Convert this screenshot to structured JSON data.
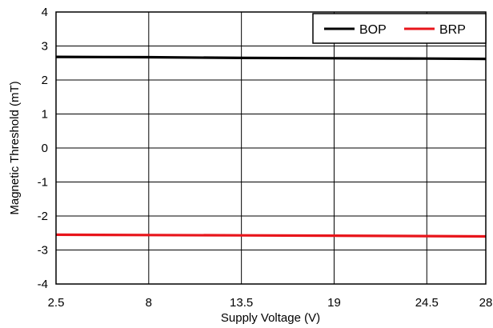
{
  "chart_data": {
    "type": "line",
    "title": "",
    "xlabel": "Supply Voltage (V)",
    "ylabel": "Magnetic Threshold (mT)",
    "xlim": [
      2.5,
      28
    ],
    "ylim": [
      -4,
      4
    ],
    "x_ticks": [
      "2.5",
      "8",
      "13.5",
      "19",
      "24.5",
      "28"
    ],
    "y_ticks": [
      "4",
      "3",
      "2",
      "1",
      "0",
      "-1",
      "-2",
      "-3",
      "-4"
    ],
    "grid": true,
    "legend_position": "top-right",
    "series": [
      {
        "name": "BOP",
        "color": "#000000",
        "x": [
          2.5,
          8,
          13.5,
          19,
          24.5,
          28
        ],
        "y": [
          2.68,
          2.67,
          2.65,
          2.64,
          2.63,
          2.62
        ]
      },
      {
        "name": "BRP",
        "color": "#e8151b",
        "x": [
          2.5,
          8,
          13.5,
          19,
          24.5,
          28
        ],
        "y": [
          -2.55,
          -2.56,
          -2.57,
          -2.58,
          -2.59,
          -2.6
        ]
      }
    ]
  }
}
